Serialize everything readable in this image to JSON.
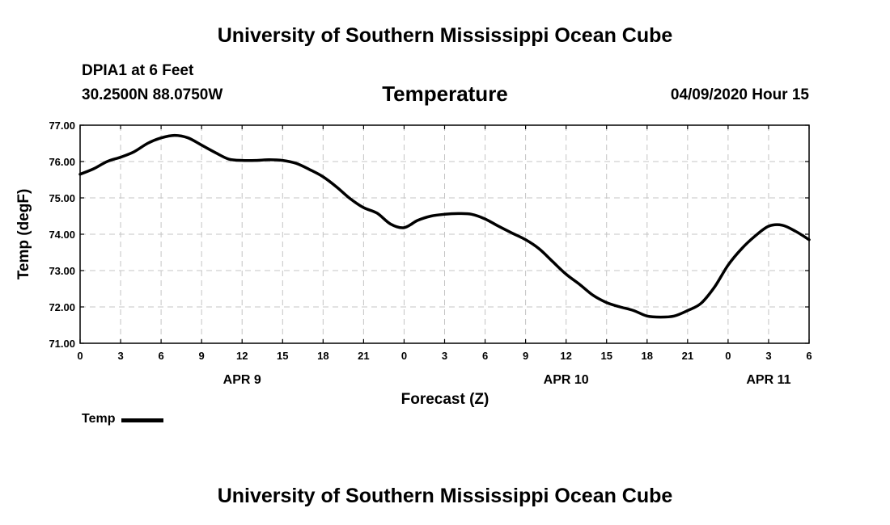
{
  "header": {
    "top_title": "University of Southern Mississippi Ocean Cube",
    "station": "DPIA1 at 6 Feet",
    "coords": "30.2500N 88.0750W",
    "timestamp": "04/09/2020 Hour 15"
  },
  "footer": {
    "bottom_title": "University of Southern Mississippi Ocean Cube"
  },
  "legend": {
    "label": "Temp",
    "line_color": "#000000"
  },
  "chart_data": {
    "type": "line",
    "title": "Temperature",
    "xlabel": "Forecast (Z)",
    "ylabel": "Temp (degF)",
    "xlim": [
      0,
      54
    ],
    "ylim": [
      71.0,
      77.0
    ],
    "grid": true,
    "legend_position": "bottom-left",
    "x_unit": "hours since APR 9 00Z",
    "x_ticks": [
      0,
      3,
      6,
      9,
      12,
      15,
      18,
      21,
      24,
      27,
      30,
      33,
      36,
      39,
      42,
      45,
      48,
      51,
      54
    ],
    "x_tick_labels": [
      "0",
      "3",
      "6",
      "9",
      "12",
      "15",
      "18",
      "21",
      "0",
      "3",
      "6",
      "9",
      "12",
      "15",
      "18",
      "21",
      "0",
      "3",
      "6"
    ],
    "y_ticks": [
      71,
      72,
      73,
      74,
      75,
      76,
      77
    ],
    "y_tick_labels": [
      "71.00",
      "72.00",
      "73.00",
      "74.00",
      "75.00",
      "76.00",
      "77.00"
    ],
    "day_labels": [
      {
        "x": 12,
        "label": "APR 9"
      },
      {
        "x": 36,
        "label": "APR 10"
      },
      {
        "x": 51,
        "label": "APR 11"
      }
    ],
    "series": [
      {
        "name": "Temp",
        "color": "#000000",
        "x": [
          0,
          1,
          2,
          3,
          4,
          5,
          6,
          7,
          8,
          9,
          10,
          11,
          12,
          13,
          14,
          15,
          16,
          17,
          18,
          19,
          20,
          21,
          22,
          23,
          24,
          25,
          26,
          27,
          28,
          29,
          30,
          31,
          32,
          33,
          34,
          35,
          36,
          37,
          38,
          39,
          40,
          41,
          42,
          43,
          44,
          45,
          46,
          47,
          48,
          49,
          50,
          51,
          52,
          53,
          54
        ],
        "values": [
          75.65,
          75.8,
          76.0,
          76.12,
          76.27,
          76.5,
          76.65,
          76.72,
          76.65,
          76.45,
          76.25,
          76.07,
          76.03,
          76.03,
          76.05,
          76.03,
          75.95,
          75.78,
          75.58,
          75.3,
          74.98,
          74.73,
          74.58,
          74.28,
          74.18,
          74.38,
          74.5,
          74.55,
          74.57,
          74.55,
          74.42,
          74.22,
          74.03,
          73.85,
          73.6,
          73.25,
          72.9,
          72.62,
          72.32,
          72.12,
          72.0,
          71.9,
          71.75,
          71.72,
          71.75,
          71.9,
          72.1,
          72.55,
          73.15,
          73.6,
          73.95,
          74.22,
          74.25,
          74.08,
          73.85
        ]
      }
    ]
  }
}
